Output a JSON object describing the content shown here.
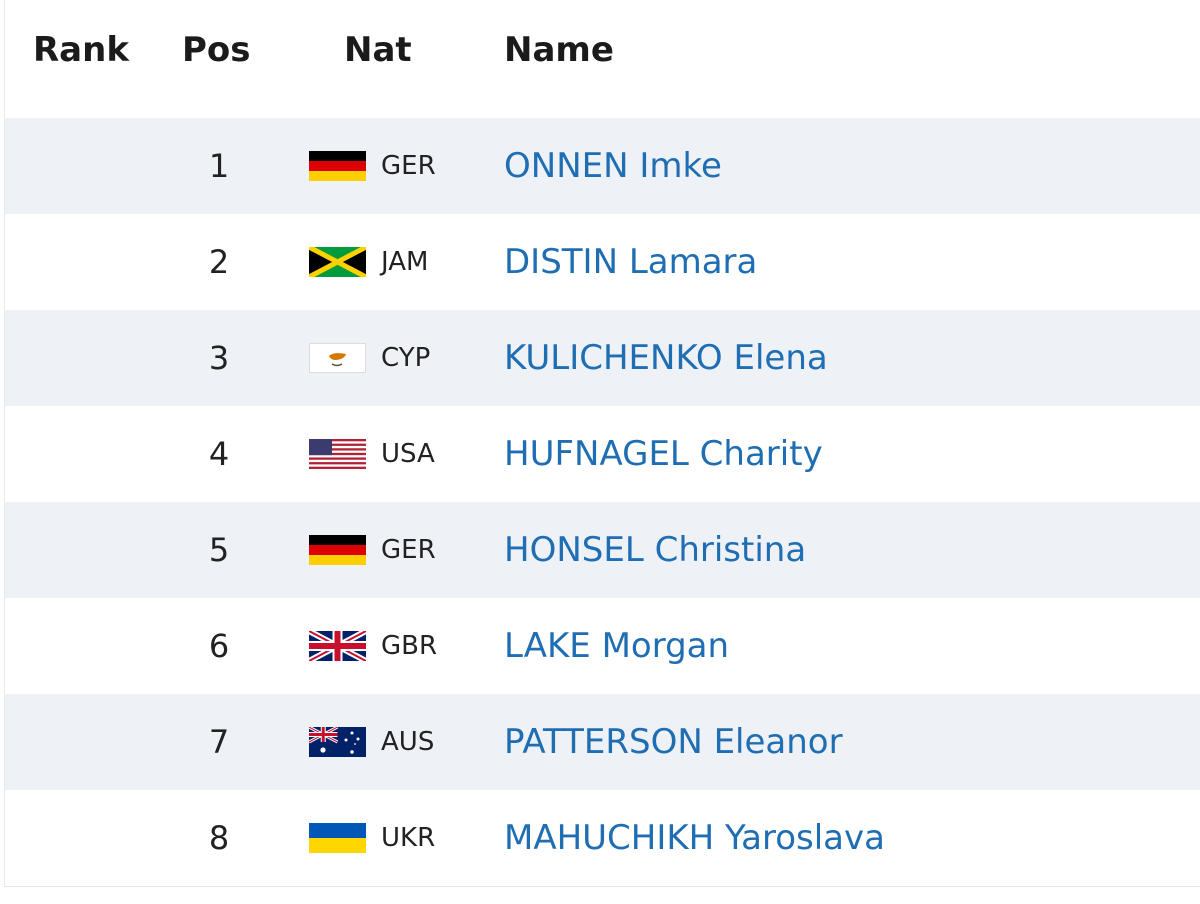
{
  "table": {
    "header": [
      "Rank",
      "Pos",
      "Nat",
      "Name"
    ],
    "rows": [
      {
        "pos": 1,
        "nat": "GER",
        "name": "ONNEN Imke"
      },
      {
        "pos": 2,
        "nat": "JAM",
        "name": "DISTIN Lamara"
      },
      {
        "pos": 3,
        "nat": "CYP",
        "name": "KULICHENKO Elena"
      },
      {
        "pos": 4,
        "nat": "USA",
        "name": "HUFNAGEL Charity"
      },
      {
        "pos": 5,
        "nat": "GER",
        "name": "HONSEL Christina"
      },
      {
        "pos": 6,
        "nat": "GBR",
        "name": "LAKE Morgan"
      },
      {
        "pos": 7,
        "nat": "AUS",
        "name": "PATTERSON Eleanor"
      },
      {
        "pos": 8,
        "nat": "UKR",
        "name": "MAHUCHIKH Yaroslava"
      }
    ]
  }
}
